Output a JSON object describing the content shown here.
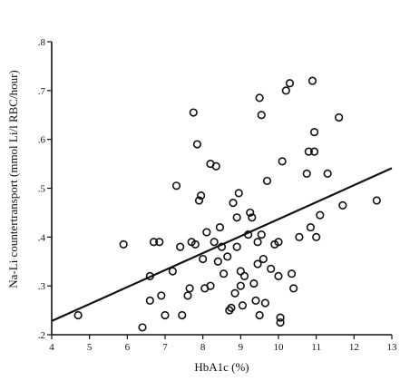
{
  "chart_data": {
    "type": "scatter",
    "xlabel": "HbA1c (%)",
    "ylabel": "Na-Li countertransport (mmol Li/l RBC/hour)",
    "xlim": [
      4,
      13
    ],
    "ylim": [
      0.2,
      0.8
    ],
    "x_ticks": [
      "4",
      "5",
      "6",
      "7",
      "8",
      "9",
      "10",
      "11",
      "12",
      "13"
    ],
    "y_ticks": [
      ".2",
      ".3",
      ".4",
      ".5",
      ".6",
      ".7",
      ".8"
    ],
    "points": [
      [
        4.7,
        0.24
      ],
      [
        5.9,
        0.385
      ],
      [
        6.4,
        0.215
      ],
      [
        6.6,
        0.27
      ],
      [
        6.6,
        0.32
      ],
      [
        6.7,
        0.39
      ],
      [
        6.85,
        0.39
      ],
      [
        6.9,
        0.28
      ],
      [
        7.0,
        0.24
      ],
      [
        7.2,
        0.33
      ],
      [
        7.3,
        0.505
      ],
      [
        7.4,
        0.38
      ],
      [
        7.45,
        0.24
      ],
      [
        7.6,
        0.28
      ],
      [
        7.65,
        0.295
      ],
      [
        7.7,
        0.39
      ],
      [
        7.75,
        0.655
      ],
      [
        7.8,
        0.385
      ],
      [
        7.85,
        0.59
      ],
      [
        7.9,
        0.475
      ],
      [
        7.95,
        0.485
      ],
      [
        8.0,
        0.355
      ],
      [
        8.05,
        0.295
      ],
      [
        8.1,
        0.41
      ],
      [
        8.2,
        0.55
      ],
      [
        8.2,
        0.3
      ],
      [
        8.3,
        0.39
      ],
      [
        8.35,
        0.545
      ],
      [
        8.4,
        0.35
      ],
      [
        8.45,
        0.42
      ],
      [
        8.5,
        0.38
      ],
      [
        8.55,
        0.325
      ],
      [
        8.65,
        0.36
      ],
      [
        8.7,
        0.25
      ],
      [
        8.75,
        0.255
      ],
      [
        8.8,
        0.47
      ],
      [
        8.85,
        0.285
      ],
      [
        8.9,
        0.44
      ],
      [
        8.9,
        0.38
      ],
      [
        8.95,
        0.49
      ],
      [
        9.0,
        0.3
      ],
      [
        9.0,
        0.33
      ],
      [
        9.05,
        0.26
      ],
      [
        9.1,
        0.32
      ],
      [
        9.2,
        0.405
      ],
      [
        9.25,
        0.45
      ],
      [
        9.3,
        0.44
      ],
      [
        9.35,
        0.305
      ],
      [
        9.4,
        0.27
      ],
      [
        9.45,
        0.345
      ],
      [
        9.45,
        0.39
      ],
      [
        9.5,
        0.685
      ],
      [
        9.5,
        0.24
      ],
      [
        9.55,
        0.405
      ],
      [
        9.55,
        0.65
      ],
      [
        9.6,
        0.355
      ],
      [
        9.65,
        0.265
      ],
      [
        9.7,
        0.515
      ],
      [
        9.8,
        0.335
      ],
      [
        9.9,
        0.385
      ],
      [
        10.0,
        0.39
      ],
      [
        10.0,
        0.32
      ],
      [
        10.05,
        0.235
      ],
      [
        10.05,
        0.225
      ],
      [
        10.1,
        0.555
      ],
      [
        10.2,
        0.7
      ],
      [
        10.3,
        0.715
      ],
      [
        10.35,
        0.325
      ],
      [
        10.4,
        0.295
      ],
      [
        10.55,
        0.4
      ],
      [
        10.75,
        0.53
      ],
      [
        10.8,
        0.575
      ],
      [
        10.85,
        0.42
      ],
      [
        10.9,
        0.72
      ],
      [
        10.95,
        0.575
      ],
      [
        10.95,
        0.615
      ],
      [
        11.0,
        0.4
      ],
      [
        11.1,
        0.445
      ],
      [
        11.3,
        0.53
      ],
      [
        11.6,
        0.645
      ],
      [
        11.7,
        0.465
      ],
      [
        12.6,
        0.475
      ]
    ],
    "regression_line": {
      "x": [
        4,
        13
      ],
      "y": [
        0.228,
        0.541
      ]
    },
    "grid": false,
    "legend": "none"
  }
}
